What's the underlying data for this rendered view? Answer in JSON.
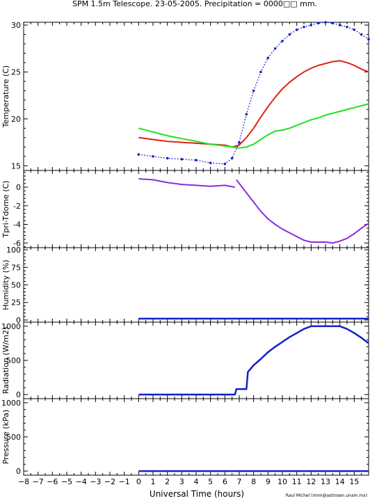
{
  "title": "SPM 1.5m Telescope. 23-05-2005. Precipitation = 0000□□ mm.",
  "xlabel": "Universal Time (hours)",
  "credit": "Raul Michel (rmm@astrosen.unam.mx)",
  "colors": {
    "blue": "#1020c8",
    "red": "#e02010",
    "green": "#20e020",
    "purple": "#8a2be2",
    "axis": "#000000"
  },
  "chart_data": [
    {
      "type": "scatter",
      "ylabel": "Temperature (C)",
      "ylim": [
        14.5,
        30.3
      ],
      "yticks": [
        15,
        20,
        25,
        30
      ],
      "xlim": [
        -8,
        16
      ],
      "series": [
        {
          "color": "blue",
          "style": "dots",
          "x": [
            0,
            1,
            2,
            3,
            4,
            5,
            6,
            6.5,
            7,
            7.5,
            8,
            8.5,
            9,
            9.5,
            10,
            10.5,
            11,
            11.5,
            12,
            12.5,
            13,
            13.5,
            14,
            14.5,
            15,
            15.5,
            16
          ],
          "y": [
            16.2,
            16.0,
            15.8,
            15.7,
            15.6,
            15.3,
            15.2,
            15.8,
            17.5,
            20.5,
            23.0,
            25.0,
            26.5,
            27.5,
            28.3,
            29.0,
            29.5,
            29.8,
            30.0,
            30.2,
            30.3,
            30.2,
            30.0,
            29.8,
            29.5,
            29.0,
            28.5
          ]
        },
        {
          "color": "red",
          "style": "line",
          "x": [
            0,
            1,
            2,
            3,
            4,
            5,
            6,
            6.5,
            7,
            7.5,
            8,
            8.5,
            9,
            9.5,
            10,
            10.5,
            11,
            11.5,
            12,
            12.5,
            13,
            13.5,
            14,
            14.5,
            15,
            15.5,
            16
          ],
          "y": [
            18.0,
            17.8,
            17.6,
            17.5,
            17.4,
            17.3,
            17.2,
            17.0,
            17.2,
            18.0,
            19.0,
            20.2,
            21.3,
            22.3,
            23.2,
            23.9,
            24.5,
            25.0,
            25.4,
            25.7,
            25.9,
            26.1,
            26.2,
            26.0,
            25.7,
            25.3,
            25.0
          ]
        },
        {
          "color": "green",
          "style": "line",
          "x": [
            0,
            1,
            2,
            3,
            4,
            5,
            6,
            6.5,
            7,
            7.5,
            8,
            8.5,
            9,
            9.5,
            10,
            10.5,
            11,
            11.5,
            12,
            12.5,
            13,
            13.5,
            14,
            14.5,
            15,
            15.5,
            16
          ],
          "y": [
            19.0,
            18.6,
            18.2,
            17.9,
            17.6,
            17.3,
            17.1,
            17.0,
            16.9,
            17.0,
            17.3,
            17.8,
            18.3,
            18.7,
            18.8,
            19.0,
            19.3,
            19.6,
            19.9,
            20.1,
            20.4,
            20.6,
            20.8,
            21.0,
            21.2,
            21.4,
            21.6
          ]
        }
      ]
    },
    {
      "type": "scatter",
      "ylabel": "Tpri-Tdome (C)",
      "ylim": [
        -6.5,
        1.8
      ],
      "yticks": [
        0,
        -2,
        -4,
        -6
      ],
      "xlim": [
        -8,
        16
      ],
      "series": [
        {
          "color": "purple",
          "style": "line",
          "x": [
            0,
            1,
            2,
            3,
            4,
            5,
            6,
            6.7
          ],
          "y": [
            0.9,
            0.8,
            0.5,
            0.3,
            0.2,
            0.1,
            0.2,
            0.0
          ]
        },
        {
          "color": "purple",
          "style": "line",
          "x": [
            6.8,
            7.5,
            8,
            8.5,
            9,
            9.5,
            10,
            10.5,
            11,
            11.5,
            12,
            12.5,
            13,
            13.5,
            14,
            14.5,
            15,
            15.5,
            16
          ],
          "y": [
            0.8,
            -0.6,
            -1.6,
            -2.6,
            -3.4,
            -4.0,
            -4.5,
            -4.9,
            -5.3,
            -5.7,
            -5.9,
            -5.9,
            -5.9,
            -6.0,
            -5.8,
            -5.5,
            -5.0,
            -4.4,
            -3.9
          ]
        }
      ]
    },
    {
      "type": "line",
      "ylabel": "Humidity (%)",
      "ylim": [
        -3,
        103
      ],
      "yticks": [
        0,
        25,
        50,
        75,
        100
      ],
      "xlim": [
        -8,
        16
      ],
      "series": [
        {
          "color": "blue",
          "style": "thick",
          "x": [
            0,
            16
          ],
          "y": [
            2,
            2
          ]
        }
      ]
    },
    {
      "type": "line",
      "ylabel": "Radiation (W/m2)",
      "ylim": [
        -60,
        1060
      ],
      "yticks": [
        0,
        500,
        1000
      ],
      "xlim": [
        -8,
        16
      ],
      "series": [
        {
          "color": "blue",
          "style": "thick",
          "x": [
            0,
            6.7,
            6.8,
            7.5,
            7.6,
            8,
            8.5,
            9,
            9.5,
            10,
            10.5,
            11,
            11.5,
            12,
            12.5,
            13,
            13.5,
            14,
            14.5,
            15,
            15.5,
            16
          ],
          "y": [
            0,
            0,
            80,
            80,
            330,
            430,
            520,
            620,
            700,
            770,
            840,
            900,
            960,
            1000,
            1000,
            1000,
            1000,
            1000,
            960,
            900,
            830,
            750
          ]
        }
      ]
    },
    {
      "type": "line",
      "ylabel": "Pressure (kPa)",
      "ylim": [
        -60,
        1060
      ],
      "yticks": [
        0,
        500,
        1000
      ],
      "xlim": [
        -8,
        16
      ],
      "series": [
        {
          "color": "blue",
          "style": "thick",
          "x": [
            0,
            16
          ],
          "y": [
            0,
            0
          ]
        }
      ]
    }
  ],
  "xticks": [
    -8,
    -7,
    -6,
    -5,
    -4,
    -3,
    -2,
    -1,
    0,
    1,
    2,
    3,
    4,
    5,
    6,
    7,
    8,
    9,
    10,
    11,
    12,
    13,
    14,
    15
  ]
}
